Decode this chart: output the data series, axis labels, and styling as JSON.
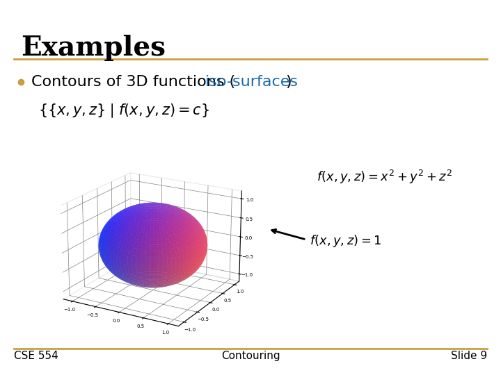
{
  "title": "Examples",
  "bullet_text": "Contours of 3D functions (",
  "bullet_highlight": "iso-surfaces",
  "bullet_end": ")",
  "footer_left": "CSE 554",
  "footer_center": "Contouring",
  "footer_right": "Slide 9",
  "bg_color": "#ffffff",
  "title_color": "#000000",
  "bullet_color": "#000000",
  "highlight_color": "#1a6aaa",
  "footer_line_color": "#c8a040",
  "header_line_color": "#c8a040",
  "bullet_dot_color": "#c8a040",
  "title_fontsize": 28,
  "bullet_fontsize": 16,
  "footer_fontsize": 11,
  "formula_fontsize": 14,
  "sphere_elev": 20,
  "sphere_azim": -60,
  "sphere_color_r": [
    0.5,
    0.4,
    0.1
  ],
  "sphere_color_g": [
    0.3,
    0.1,
    -0.1
  ],
  "sphere_color_b": [
    0.7,
    -0.3,
    0.1
  ]
}
